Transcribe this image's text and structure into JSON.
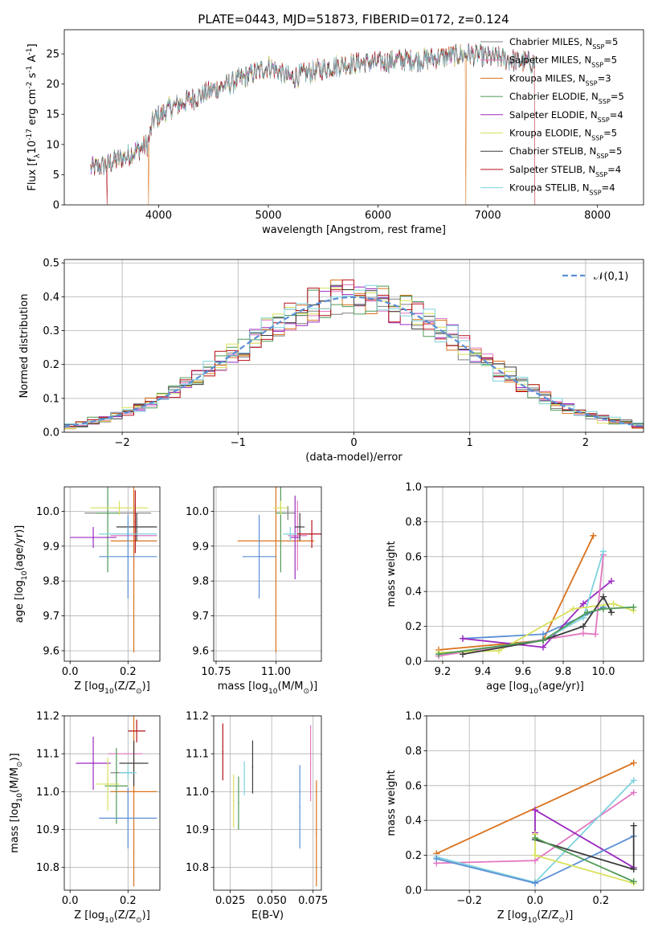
{
  "figure": {
    "title": "PLATE=0443, MJD=51873, FIBERID=0172, z=0.124"
  },
  "models": [
    {
      "label": "Chabrier MILES, N$_{SSP}$=5",
      "color": "#7f7f7f"
    },
    {
      "label": "Salpeter MILES, N$_{SSP}$=5",
      "color": "#e377c2"
    },
    {
      "label": "Kroupa MILES, N$_{SSP}$=3",
      "color": "#d9721d"
    },
    {
      "label": "Chabrier ELODIE, N$_{SSP}$=5",
      "color": "#4e9a56"
    },
    {
      "label": "Salpeter ELODIE, N$_{SSP}$=4",
      "color": "#9b29c0"
    },
    {
      "label": "Kroupa ELODIE, N$_{SSP}$=5",
      "color": "#d8e05a"
    },
    {
      "label": "Chabrier STELIB, N$_{SSP}$=5",
      "color": "#3c3c3c"
    },
    {
      "label": "Salpeter STELIB, N$_{SSP}$=4",
      "color": "#b5101a"
    },
    {
      "label": "Kroupa STELIB, N$_{SSP}$=4",
      "color": "#7ed3dd"
    }
  ],
  "chart_data": [
    {
      "type": "line",
      "name": "spectrum",
      "xlabel": "wavelength [Angstrom, rest frame]",
      "ylabel": "Flux [f$_\\lambda$10$^{-17}$ erg cm$^{-2}$ s$^{-1}$ A$^{-1}$]",
      "xlim": [
        3140,
        8420
      ],
      "ylim": [
        0,
        29
      ],
      "xticks": [
        4000,
        5000,
        6000,
        7000,
        8000
      ],
      "yticks": [
        0,
        5,
        10,
        15,
        20,
        25
      ],
      "grid": false,
      "legend": "upper right",
      "x_range": [
        3380,
        7430
      ],
      "flux_envelope": {
        "x": [
          3380,
          3500,
          3700,
          3900,
          3950,
          4100,
          4300,
          4500,
          4700,
          4900,
          5000,
          5200,
          5400,
          5600,
          5800,
          6000,
          6200,
          6400,
          6600,
          6800,
          7000,
          7200,
          7430
        ],
        "y": [
          6,
          6.5,
          8,
          10,
          14,
          16,
          17.5,
          19,
          20.5,
          22,
          23,
          21,
          22,
          23,
          23.5,
          23.5,
          24,
          24,
          24.5,
          25,
          24.5,
          24,
          23.5
        ]
      },
      "dropouts": [
        {
          "model": "Kroupa MILES, N$_{SSP}$=3",
          "x": 3910
        },
        {
          "model": "Salpeter STELIB, N$_{SSP}$=4",
          "x": 3530
        },
        {
          "model": "Kroupa MILES, N$_{SSP}$=3",
          "x": 6800
        },
        {
          "model": "Salpeter STELIB, N$_{SSP}$=4",
          "x": 7430
        }
      ]
    },
    {
      "type": "line",
      "name": "residual_histogram",
      "xlabel": "(data-model)/error",
      "ylabel": "Normed distribution",
      "xlim": [
        -2.5,
        2.5
      ],
      "ylim": [
        0,
        0.51
      ],
      "xticks": [
        -2,
        -1,
        0,
        1,
        2
      ],
      "yticks": [
        0.0,
        0.1,
        0.2,
        0.3,
        0.4,
        0.5
      ],
      "grid": true,
      "legend": "upper right",
      "reference_label": "$\\mathcal{N}(0,1)$",
      "reference_color": "#5b8fd6",
      "bin_width": 0.1,
      "bin_start": -2.5
    },
    {
      "type": "scatter",
      "name": "age_vs_Z",
      "xlabel": "Z [log$_{10}$(Z/Z$_\\odot$)]",
      "ylabel": "age  [log$_{10}$(age/yr)]",
      "xlim": [
        -0.02,
        0.31
      ],
      "ylim": [
        9.57,
        10.07
      ],
      "xticks": [
        0.0,
        0.2
      ],
      "yticks": [
        9.6,
        9.7,
        9.8,
        9.9,
        10.0
      ],
      "grid": true,
      "points": [
        {
          "x": 0.165,
          "y": 9.995,
          "xerr": 0.115,
          "yerr": 0.0,
          "color": "#7f7f7f"
        },
        {
          "x": 0.22,
          "y": 9.93,
          "xerr": 0.08,
          "yerr": 0.09,
          "color": "#e377c2"
        },
        {
          "x": 0.22,
          "y": 9.915,
          "xerr": 0.08,
          "yerr": 0.32,
          "color": "#d9721d"
        },
        {
          "x": 0.13,
          "y": 9.995,
          "xerr": 0.04,
          "yerr": 0.17,
          "color": "#4e9a56"
        },
        {
          "x": 0.08,
          "y": 9.925,
          "xerr": 0.08,
          "yerr": 0.03,
          "color": "#9b29c0"
        },
        {
          "x": 0.17,
          "y": 10.01,
          "xerr": 0.1,
          "yerr": 0.02,
          "color": "#d8e05a"
        },
        {
          "x": 0.23,
          "y": 9.955,
          "xerr": 0.07,
          "yerr": 0.04,
          "color": "#3c3c3c"
        },
        {
          "x": 0.225,
          "y": 9.97,
          "xerr": 0.0,
          "yerr": 0.09,
          "color": "#b5101a"
        },
        {
          "x": 0.2,
          "y": 9.935,
          "xerr": 0.1,
          "yerr": 0.02,
          "color": "#7ed3dd"
        },
        {
          "x": 0.2,
          "y": 9.87,
          "xerr": 0.1,
          "yerr": 0.12,
          "color": "#5b8fd6"
        }
      ]
    },
    {
      "type": "scatter",
      "name": "age_vs_mass",
      "xlabel": "mass [log$_{10}$(M/M$_\\odot$)]",
      "ylabel": "",
      "xlim": [
        10.74,
        11.19
      ],
      "ylim": [
        9.57,
        10.07
      ],
      "xticks": [
        10.75,
        11.0
      ],
      "yticks": [
        9.6,
        9.7,
        9.8,
        9.9,
        10.0
      ],
      "grid": true,
      "points": [
        {
          "x": 11.05,
          "y": 9.995,
          "xerr": 0.03,
          "yerr": 0.02,
          "color": "#7f7f7f"
        },
        {
          "x": 11.09,
          "y": 9.93,
          "xerr": 0.04,
          "yerr": 0.1,
          "color": "#e377c2"
        },
        {
          "x": 11.0,
          "y": 9.915,
          "xerr": 0.16,
          "yerr": 0.32,
          "color": "#d9721d"
        },
        {
          "x": 11.02,
          "y": 9.995,
          "xerr": 0.02,
          "yerr": 0.17,
          "color": "#4e9a56"
        },
        {
          "x": 11.08,
          "y": 9.925,
          "xerr": 0.02,
          "yerr": 0.12,
          "color": "#9b29c0"
        },
        {
          "x": 11.02,
          "y": 10.01,
          "xerr": 0.03,
          "yerr": 0.02,
          "color": "#d8e05a"
        },
        {
          "x": 11.1,
          "y": 9.955,
          "xerr": 0.02,
          "yerr": 0.04,
          "color": "#3c3c3c"
        },
        {
          "x": 11.15,
          "y": 9.935,
          "xerr": 0.06,
          "yerr": 0.04,
          "color": "#b5101a"
        },
        {
          "x": 11.06,
          "y": 9.935,
          "xerr": 0.03,
          "yerr": 0.02,
          "color": "#7ed3dd"
        },
        {
          "x": 10.93,
          "y": 9.87,
          "xerr": 0.07,
          "yerr": 0.12,
          "color": "#5b8fd6"
        }
      ]
    },
    {
      "type": "line",
      "name": "mass_weight_vs_age",
      "xlabel": "age  [log$_{10}$(age/yr)]",
      "ylabel": "mass weight",
      "xlim": [
        9.12,
        10.2
      ],
      "ylim": [
        0,
        1
      ],
      "xticks": [
        9.2,
        9.4,
        9.6,
        9.8,
        10.0
      ],
      "yticks": [
        0.0,
        0.2,
        0.4,
        0.6,
        0.8,
        1.0
      ],
      "grid": true,
      "series": [
        {
          "color": "#d9721d",
          "x": [
            9.18,
            9.7,
            9.95
          ],
          "y": [
            0.065,
            0.12,
            0.72
          ]
        },
        {
          "color": "#5b8fd6",
          "x": [
            9.3,
            9.7,
            10.0
          ],
          "y": [
            0.13,
            0.155,
            0.31
          ]
        },
        {
          "color": "#9b29c0",
          "x": [
            9.3,
            9.7,
            9.9,
            10.04
          ],
          "y": [
            0.13,
            0.08,
            0.33,
            0.46
          ]
        },
        {
          "color": "#e377c2",
          "x": [
            9.18,
            9.9,
            9.96,
            10.0
          ],
          "y": [
            0.03,
            0.16,
            0.155,
            0.61
          ]
        },
        {
          "color": "#7ed3dd",
          "x": [
            9.18,
            9.7,
            9.9,
            10.0
          ],
          "y": [
            0.04,
            0.12,
            0.25,
            0.63
          ]
        },
        {
          "color": "#d8e05a",
          "x": [
            9.18,
            9.48,
            9.85,
            10.05,
            10.15
          ],
          "y": [
            0.05,
            0.06,
            0.3,
            0.33,
            0.29
          ]
        },
        {
          "color": "#3c3c3c",
          "x": [
            9.3,
            9.7,
            9.9,
            10.0,
            10.04
          ],
          "y": [
            0.04,
            0.12,
            0.2,
            0.37,
            0.28
          ]
        },
        {
          "color": "#4e9a56",
          "x": [
            9.18,
            9.7,
            9.92,
            10.0,
            10.15
          ],
          "y": [
            0.04,
            0.12,
            0.28,
            0.3,
            0.31
          ]
        }
      ]
    },
    {
      "type": "scatter",
      "name": "mass_vs_Z",
      "xlabel": "Z [log$_{10}$(Z/Z$_\\odot$)]",
      "ylabel": "mass [log$_{10}$(M/M$_\\odot$)]",
      "xlim": [
        -0.02,
        0.31
      ],
      "ylim": [
        10.74,
        11.2
      ],
      "xticks": [
        0.0,
        0.2
      ],
      "yticks": [
        10.8,
        10.9,
        11.0,
        11.1,
        11.2
      ],
      "grid": true,
      "points": [
        {
          "x": 0.18,
          "y": 11.05,
          "xerr": 0.04,
          "yerr": 0.0,
          "color": "#7f7f7f"
        },
        {
          "x": 0.19,
          "y": 11.1,
          "xerr": 0.06,
          "yerr": 0.0,
          "color": "#e377c2"
        },
        {
          "x": 0.22,
          "y": 11.0,
          "xerr": 0.08,
          "yerr": 0.25,
          "color": "#d9721d"
        },
        {
          "x": 0.16,
          "y": 11.015,
          "xerr": 0.04,
          "yerr": 0.1,
          "color": "#4e9a56"
        },
        {
          "x": 0.08,
          "y": 11.075,
          "xerr": 0.06,
          "yerr": 0.07,
          "color": "#9b29c0"
        },
        {
          "x": 0.13,
          "y": 11.02,
          "xerr": 0.04,
          "yerr": 0.07,
          "color": "#d8e05a"
        },
        {
          "x": 0.22,
          "y": 11.075,
          "xerr": 0.05,
          "yerr": 0.06,
          "color": "#3c3c3c"
        },
        {
          "x": 0.23,
          "y": 11.16,
          "xerr": 0.03,
          "yerr": 0.03,
          "color": "#b5101a"
        },
        {
          "x": 0.2,
          "y": 11.05,
          "xerr": 0.03,
          "yerr": 0.02,
          "color": "#7ed3dd"
        },
        {
          "x": 0.2,
          "y": 10.93,
          "xerr": 0.1,
          "yerr": 0.08,
          "color": "#5b8fd6"
        }
      ]
    },
    {
      "type": "scatter",
      "name": "mass_vs_ebv",
      "xlabel": "E(B-V)",
      "ylabel": "",
      "xlim": [
        0.015,
        0.08
      ],
      "ylim": [
        10.74,
        11.2
      ],
      "xticks": [
        0.025,
        0.05,
        0.075
      ],
      "yticks": [
        10.8,
        10.9,
        11.0,
        11.1,
        11.2
      ],
      "grid": true,
      "points": [
        {
          "x": 0.0205,
          "y": 11.105,
          "xerr": 0.0,
          "yerr": 0.075,
          "color": "#b5101a"
        },
        {
          "x": 0.027,
          "y": 10.975,
          "xerr": 0.0,
          "yerr": 0.07,
          "color": "#d8e05a"
        },
        {
          "x": 0.03,
          "y": 10.97,
          "xerr": 0.0,
          "yerr": 0.07,
          "color": "#4e9a56"
        },
        {
          "x": 0.0335,
          "y": 11.035,
          "xerr": 0.0,
          "yerr": 0.045,
          "color": "#7ed3dd"
        },
        {
          "x": 0.0385,
          "y": 11.065,
          "xerr": 0.0,
          "yerr": 0.07,
          "color": "#3c3c3c"
        },
        {
          "x": 0.067,
          "y": 10.96,
          "xerr": 0.0,
          "yerr": 0.11,
          "color": "#5b8fd6"
        },
        {
          "x": 0.0735,
          "y": 11.075,
          "xerr": 0.0,
          "yerr": 0.1,
          "color": "#e377c2"
        },
        {
          "x": 0.077,
          "y": 10.89,
          "xerr": 0.0,
          "yerr": 0.14,
          "color": "#d9721d"
        }
      ]
    },
    {
      "type": "line",
      "name": "mass_weight_vs_Z",
      "xlabel": "Z [log$_{10}$(Z/Z$_\\odot$)]",
      "ylabel": "mass weight",
      "xlim": [
        -0.33,
        0.33
      ],
      "ylim": [
        0,
        1
      ],
      "xticks": [
        -0.2,
        0.0,
        0.2
      ],
      "yticks": [
        0.0,
        0.2,
        0.4,
        0.6,
        0.8,
        1.0
      ],
      "grid": true,
      "series": [
        {
          "color": "#d9721d",
          "x": [
            -0.3,
            0.3
          ],
          "y": [
            0.21,
            0.73
          ]
        },
        {
          "color": "#e377c2",
          "x": [
            -0.3,
            0.0,
            0.3
          ],
          "y": [
            0.155,
            0.17,
            0.56
          ]
        },
        {
          "color": "#7ed3dd",
          "x": [
            -0.3,
            0.0,
            0.3
          ],
          "y": [
            0.19,
            0.045,
            0.63
          ]
        },
        {
          "color": "#9b29c0",
          "x": [
            0.0,
            0.0,
            0.3
          ],
          "y": [
            0.33,
            0.46,
            0.13
          ]
        },
        {
          "color": "#5b8fd6",
          "x": [
            -0.3,
            0.0,
            0.3
          ],
          "y": [
            0.18,
            0.04,
            0.31
          ]
        },
        {
          "color": "#3c3c3c",
          "x": [
            0.0,
            0.3,
            0.3
          ],
          "y": [
            0.29,
            0.12,
            0.37
          ]
        },
        {
          "color": "#d8e05a",
          "x": [
            0.0,
            0.0,
            0.3
          ],
          "y": [
            0.32,
            0.2,
            0.04
          ]
        },
        {
          "color": "#4e9a56",
          "x": [
            0.0,
            0.3
          ],
          "y": [
            0.3,
            0.05
          ]
        }
      ]
    }
  ]
}
